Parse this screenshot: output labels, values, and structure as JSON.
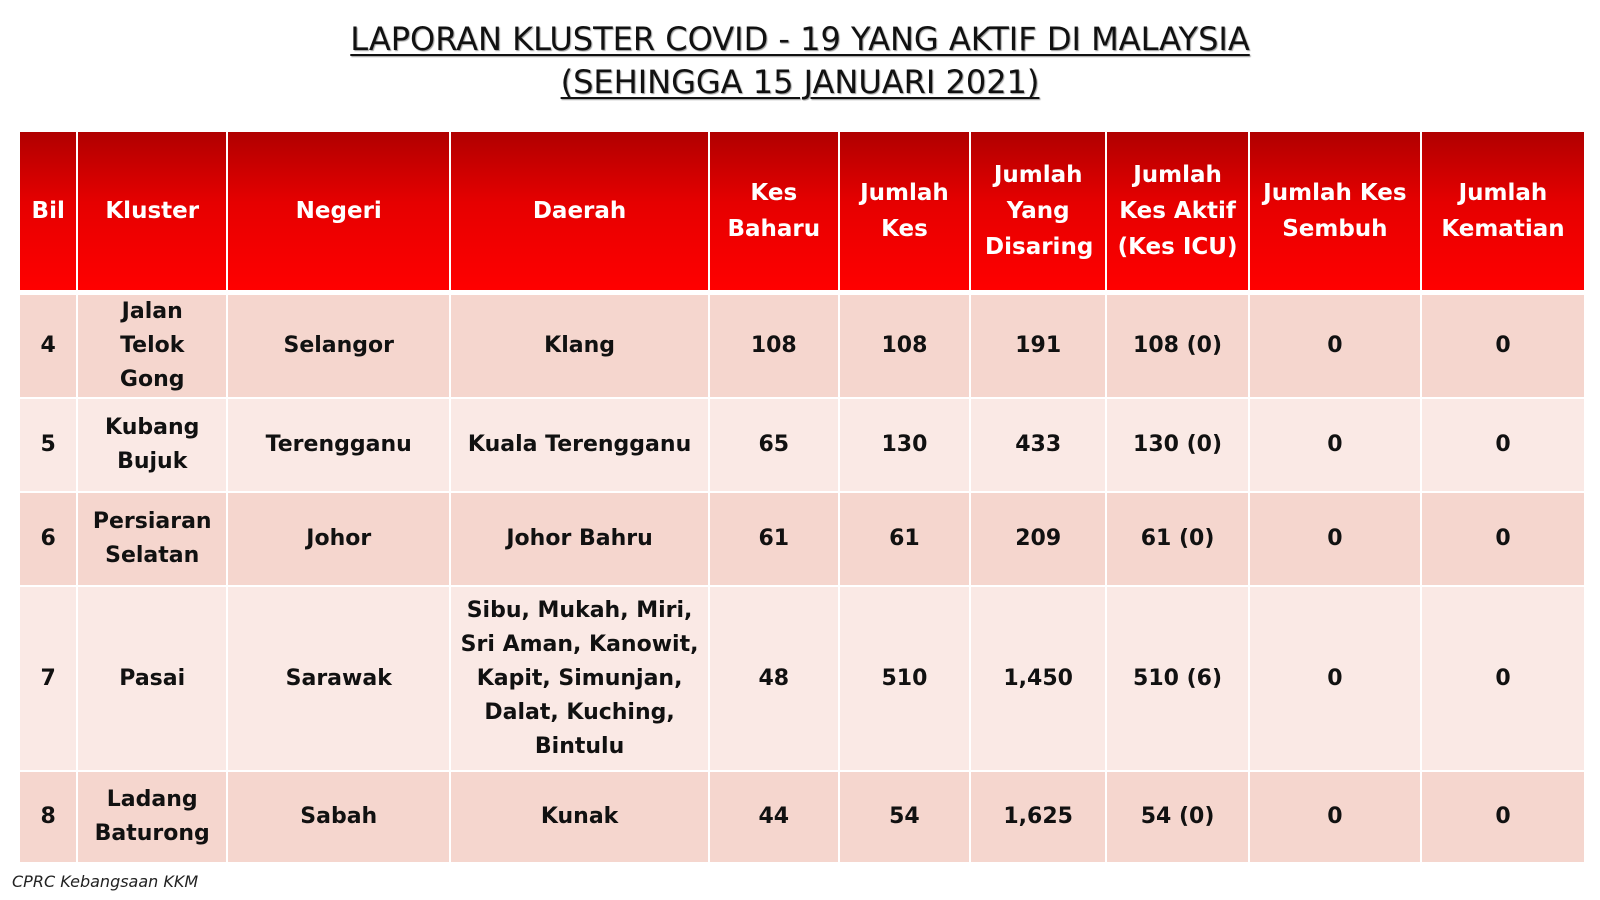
{
  "title": {
    "line1": "LAPORAN KLUSTER COVID - 19 YANG AKTIF DI MALAYSIA",
    "line2": "(SEHINGGA 15 JANUARI 2021)"
  },
  "colors": {
    "header_red": "#e60000",
    "row_dark": "#f5d6ce",
    "row_light": "#fae9e5"
  },
  "table": {
    "headers": [
      "Bil",
      "Kluster",
      "Negeri",
      "Daerah",
      "Kes Baharu",
      "Jumlah Kes",
      "Jumlah Yang Disaring",
      "Jumlah Kes Aktif (Kes ICU)",
      "Jumlah Kes Sembuh",
      "Jumlah Kematian"
    ],
    "rows": [
      [
        "4",
        "Jalan Telok Gong",
        "Selangor",
        "Klang",
        "108",
        "108",
        "191",
        "108 (0)",
        "0",
        "0"
      ],
      [
        "5",
        "Kubang Bujuk",
        "Terengganu",
        "Kuala Terengganu",
        "65",
        "130",
        "433",
        "130 (0)",
        "0",
        "0"
      ],
      [
        "6",
        "Persiaran Selatan",
        "Johor",
        "Johor Bahru",
        "61",
        "61",
        "209",
        "61 (0)",
        "0",
        "0"
      ],
      [
        "7",
        "Pasai",
        "Sarawak",
        "Sibu, Mukah, Miri, Sri Aman, Kanowit, Kapit, Simunjan, Dalat, Kuching, Bintulu",
        "48",
        "510",
        "1,450",
        "510 (6)",
        "0",
        "0"
      ],
      [
        "8",
        "Ladang Baturong",
        "Sabah",
        "Kunak",
        "44",
        "54",
        "1,625",
        "54 (0)",
        "0",
        "0"
      ]
    ]
  },
  "footer": "CPRC Kebangsaan KKM"
}
